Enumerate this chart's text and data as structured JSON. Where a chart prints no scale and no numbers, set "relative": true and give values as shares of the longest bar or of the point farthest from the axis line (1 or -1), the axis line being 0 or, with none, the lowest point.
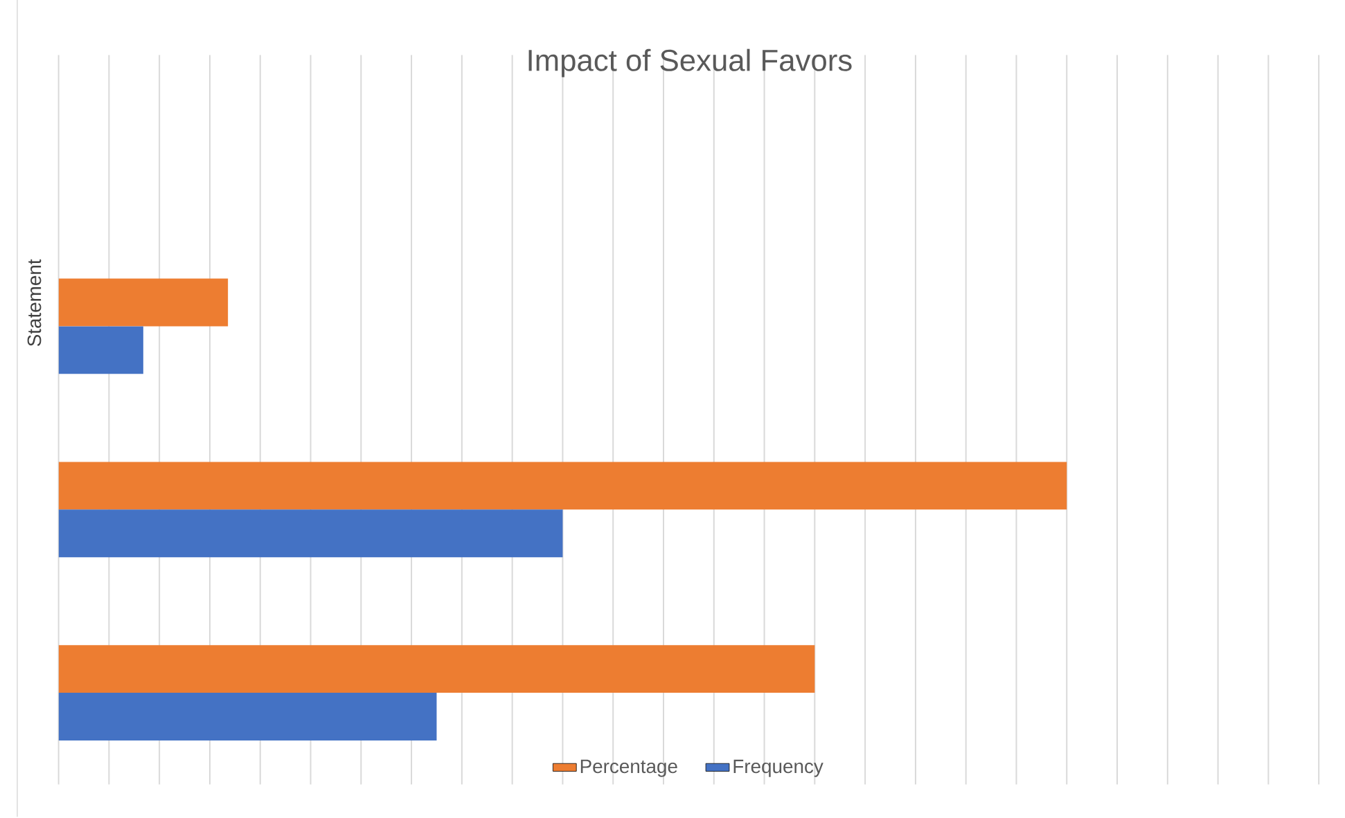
{
  "chart_data": {
    "type": "bar",
    "orientation": "horizontal",
    "relative": true,
    "title": "Impact of Sexual Favors",
    "ylabel": "Statement",
    "categories": [
      null,
      null,
      null
    ],
    "series": [
      {
        "name": "Percentage",
        "color": "#ed7d31",
        "values": [
          0.168,
          1,
          0.75
        ]
      },
      {
        "name": "Frequency",
        "color": "#4472c4",
        "values": [
          0.084,
          0.5,
          0.375
        ]
      }
    ],
    "grid": "x",
    "legend": "bottom"
  }
}
